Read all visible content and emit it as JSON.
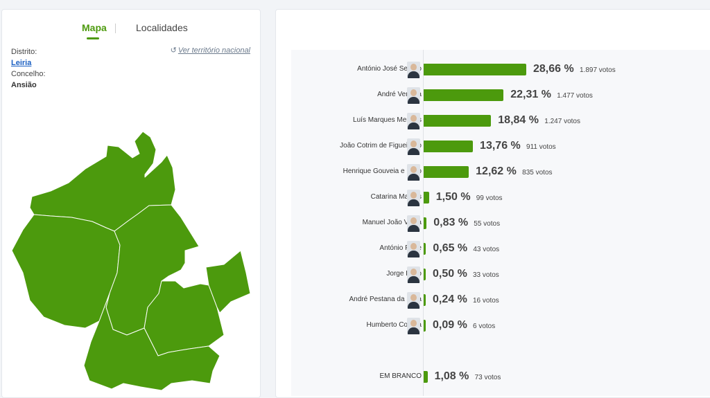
{
  "tabs": {
    "map": "Mapa",
    "localities": "Localidades"
  },
  "location": {
    "district_label": "Distrito:",
    "district_value": "Leiria",
    "municipality_label": "Concelho:",
    "municipality_value": "Ansião",
    "national_link": "Ver território nacional"
  },
  "colors": {
    "accent": "#4c9a0d",
    "link": "#1a5fc2"
  },
  "results": [
    {
      "name": "António José Seguro",
      "percent_label": "28,66 %",
      "votes_label": "1.897 votos",
      "percent": 28.66
    },
    {
      "name": "André Ventura",
      "percent_label": "22,31 %",
      "votes_label": "1.477 votos",
      "percent": 22.31
    },
    {
      "name": "Luís Marques Mendes",
      "percent_label": "18,84 %",
      "votes_label": "1.247 votos",
      "percent": 18.84
    },
    {
      "name": "João Cotrim de Figueiredo",
      "percent_label": "13,76 %",
      "votes_label": "911 votos",
      "percent": 13.76
    },
    {
      "name": "Henrique Gouveia e Melo",
      "percent_label": "12,62 %",
      "votes_label": "835 votos",
      "percent": 12.62
    },
    {
      "name": "Catarina Martins",
      "percent_label": "1,50 %",
      "votes_label": "99 votos",
      "percent": 1.5
    },
    {
      "name": "Manuel João Vieira",
      "percent_label": "0,83 %",
      "votes_label": "55 votos",
      "percent": 0.83
    },
    {
      "name": "António Filipe",
      "percent_label": "0,65 %",
      "votes_label": "43 votos",
      "percent": 0.65
    },
    {
      "name": "Jorge Pinto",
      "percent_label": "0,50 %",
      "votes_label": "33 votos",
      "percent": 0.5
    },
    {
      "name": "André Pestana da Silva",
      "percent_label": "0,24 %",
      "votes_label": "16 votos",
      "percent": 0.24
    },
    {
      "name": "Humberto Correia",
      "percent_label": "0,09 %",
      "votes_label": "6 votos",
      "percent": 0.09
    }
  ],
  "blank": {
    "name": "EM BRANCO",
    "percent_label": "1,08 %",
    "votes_label": "73 votos",
    "percent": 1.08
  }
}
